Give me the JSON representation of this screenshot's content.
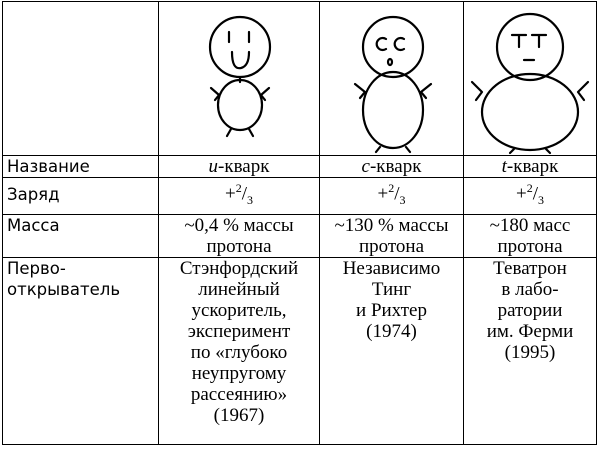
{
  "table": {
    "rows": [
      {
        "label": "Название",
        "cells": [
          {
            "symbol": "u",
            "suffix": "-кварк"
          },
          {
            "symbol": "c",
            "suffix": "-кварк"
          },
          {
            "symbol": "t",
            "suffix": "-кварк"
          }
        ]
      },
      {
        "label": "Заряд",
        "cells": [
          {
            "sign": "+",
            "numerator": "2",
            "denominator": "3"
          },
          {
            "sign": "+",
            "numerator": "2",
            "denominator": "3"
          },
          {
            "sign": "+",
            "numerator": "2",
            "denominator": "3"
          }
        ]
      },
      {
        "label": "Масса",
        "cells": [
          {
            "lines": [
              "~0,4 % массы",
              "протона"
            ]
          },
          {
            "lines": [
              "~130 % массы",
              "протона"
            ]
          },
          {
            "lines": [
              "~180 масс",
              "протона"
            ]
          }
        ]
      },
      {
        "label_lines": [
          "Перво-",
          "открыватель"
        ],
        "cells": [
          {
            "lines": [
              "Стэнфордский",
              "линейный",
              "ускоритель,",
              "эксперимент",
              "по «глубоко",
              "неупругому",
              "рассеянию»",
              "(1967)"
            ]
          },
          {
            "lines": [
              "Независимо",
              "Тинг",
              "и Рихтер",
              "(1974)"
            ]
          },
          {
            "lines": [
              "Теватрон",
              "в лабо-",
              "ратории",
              "им. Ферми",
              "(1995)"
            ]
          }
        ]
      }
    ]
  }
}
